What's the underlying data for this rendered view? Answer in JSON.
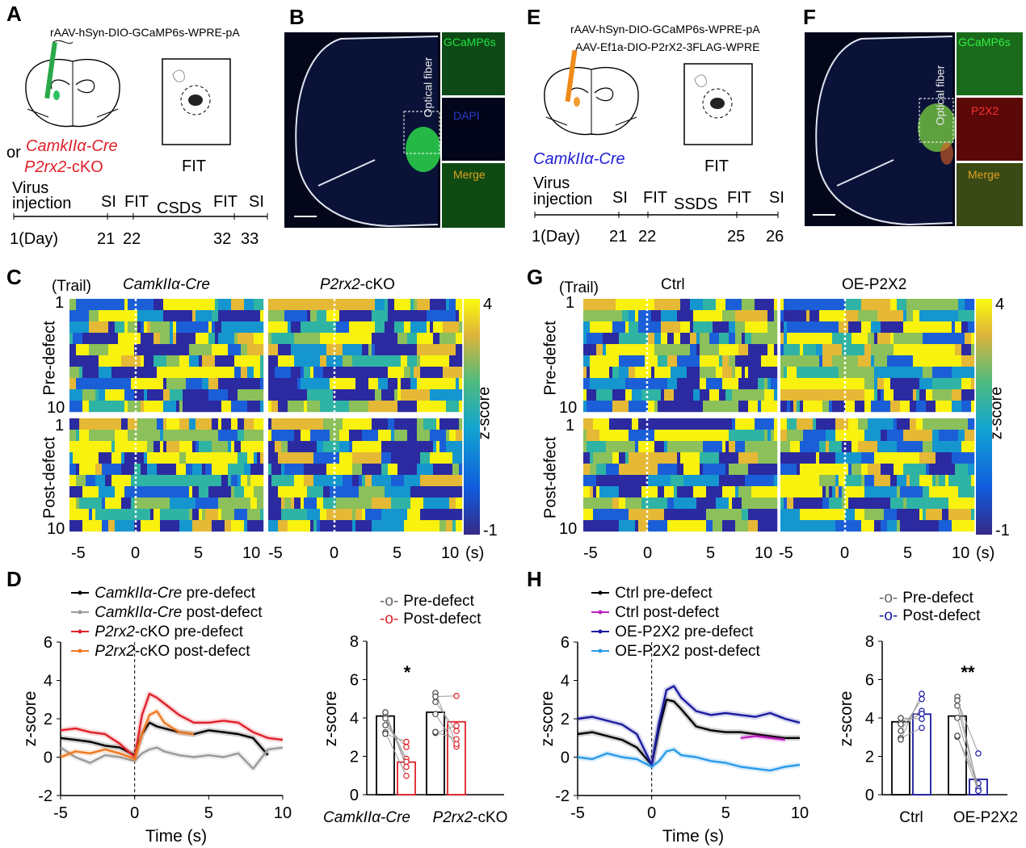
{
  "panels": {
    "A": "A",
    "B": "B",
    "C": "C",
    "D": "D",
    "E": "E",
    "F": "F",
    "G": "G",
    "H": "H"
  },
  "panelA": {
    "virus": "rAAV-hSyn-DIO-GCaMP6s-WPRE-pA",
    "or": "or",
    "line1": "CamkIIα-Cre",
    "line2a": "P2rx2",
    "line2b": "-cKO",
    "fit_label": "FIT",
    "timeline": {
      "virus": "Virus",
      "injection": "injection",
      "day": "1(Day)",
      "events": [
        "SI",
        "FIT",
        "CSDS",
        "FIT",
        "SI"
      ],
      "days": [
        "21",
        "22",
        "32",
        "33"
      ]
    }
  },
  "panelB": {
    "fiber": "Optical fiber",
    "insets": [
      "GCaMP6s",
      "DAPI",
      "Merge"
    ]
  },
  "panelE": {
    "virus1": "rAAV-hSyn-DIO-GCaMP6s-WPRE-pA",
    "virus2": "AAV-Ef1a-DIO-P2rX2-3FLAG-WPRE",
    "line": "CamkIIα-Cre",
    "fit_label": "FIT",
    "timeline": {
      "virus": "Virus",
      "injection": "injection",
      "day": "1(Day)",
      "events": [
        "SI",
        "FIT",
        "SSDS",
        "FIT",
        "SI"
      ],
      "days": [
        "21",
        "22",
        "25",
        "26"
      ]
    }
  },
  "panelF": {
    "fiber": "Optical fiber",
    "insets": [
      "GCaMP6s",
      "P2X2",
      "Merge"
    ]
  },
  "panelC": {
    "trail": "(Trail)",
    "col1": "CamkIIα-Cre",
    "col2a": "P2rx2",
    "col2b": "-cKO",
    "row1": "Pre-defect",
    "row2": "Post-defect",
    "tick_first": "1",
    "tick_last": "10",
    "xticks": [
      "-5",
      "0",
      "5",
      "10"
    ],
    "xunit": "(s)",
    "cbar_label": "z-score",
    "cbar_max": "4",
    "cbar_min": "-1"
  },
  "panelG": {
    "trail": "(Trail)",
    "col1": "Ctrl",
    "col2": "OE-P2X2",
    "row1": "Pre-defect",
    "row2": "Post-defect",
    "tick_first": "1",
    "tick_last": "10",
    "xticks": [
      "-5",
      "0",
      "5",
      "10"
    ],
    "xunit": "(s)",
    "cbar_label": "z-score",
    "cbar_max": "4",
    "cbar_min": "-1"
  },
  "panelD": {
    "legend": [
      {
        "a": "CamkIIα-Cre",
        "b": " pre-defect",
        "color": "#000000"
      },
      {
        "a": "CamkIIα-Cre",
        "b": " post-defect",
        "color": "#9a9a9a"
      },
      {
        "a": "P2rx2",
        "b": "-cKO pre-defect",
        "color": "#e0202a"
      },
      {
        "a": "P2rx2",
        "b": "-cKO post-defect",
        "color": "#f07820"
      }
    ],
    "ylabel": "z-score",
    "xlabel": "Time (s)",
    "yticks": [
      "6",
      "4",
      "2",
      "0",
      "-2"
    ],
    "xticks": [
      "-5",
      "0",
      "5",
      "10"
    ],
    "bar_legend": [
      "Pre-defect",
      "Post-defect"
    ],
    "bar_yticks": [
      "8",
      "6",
      "4",
      "2",
      "0"
    ],
    "bar_cat1": "CamkIIα-Cre",
    "bar_cat2a": "P2rx2",
    "bar_cat2b": "-cKO",
    "sig": "*"
  },
  "panelH": {
    "legend": [
      {
        "a": "Ctrl pre-defect",
        "color": "#000000"
      },
      {
        "a": "Ctrl post-defect",
        "color": "#c020c0"
      },
      {
        "a": "OE-P2X2 pre-defect",
        "color": "#1a1aa0"
      },
      {
        "a": "OE-P2X2 post-defect",
        "color": "#2a9ae8"
      }
    ],
    "ylabel": "z-score",
    "xlabel": "Time (s)",
    "yticks": [
      "6",
      "4",
      "2",
      "0",
      "-2"
    ],
    "xticks": [
      "-5",
      "0",
      "5",
      "10"
    ],
    "bar_legend": [
      "Pre-defect",
      "Post-defect"
    ],
    "bar_yticks": [
      "8",
      "6",
      "4",
      "2",
      "0"
    ],
    "bar_cat1": "Ctrl",
    "bar_cat2": "OE-P2X2",
    "sig": "**"
  },
  "chart_data": [
    {
      "type": "line",
      "title": "",
      "xlabel": "Time (s)",
      "ylabel": "z-score",
      "xlim": [
        -5,
        10
      ],
      "ylim": [
        -2,
        6
      ],
      "x": [
        -5,
        -4,
        -3,
        -2,
        -1,
        0,
        0.5,
        1,
        1.5,
        2,
        3,
        4,
        5,
        6,
        7,
        8,
        9,
        10
      ],
      "series": [
        {
          "name": "CamkIIα-Cre pre-defect",
          "values": [
            1.0,
            0.9,
            0.8,
            0.6,
            0.5,
            0.1,
            1.2,
            1.8,
            1.6,
            1.5,
            1.3,
            1.2,
            1.4,
            1.3,
            1.2,
            1.0,
            0.1,
            null
          ]
        },
        {
          "name": "CamkIIα-Cre post-defect",
          "values": [
            0.5,
            0.0,
            -0.3,
            0.1,
            0.0,
            -0.2,
            0.2,
            0.4,
            0.5,
            0.3,
            0.1,
            0.0,
            0.1,
            0.0,
            0.2,
            -0.6,
            0.4,
            0.5
          ]
        },
        {
          "name": "P2rx2-cKO pre-defect",
          "values": [
            1.4,
            1.5,
            1.3,
            1.2,
            0.7,
            0.0,
            2.2,
            3.3,
            3.1,
            2.8,
            2.2,
            1.8,
            1.8,
            1.9,
            1.8,
            1.3,
            1.0,
            0.9
          ]
        },
        {
          "name": "P2rx2-cKO post-defect",
          "values": [
            0.0,
            0.3,
            0.2,
            0.4,
            0.2,
            -0.1,
            1.2,
            2.2,
            2.4,
            1.8,
            1.3,
            1.2,
            null,
            null,
            null,
            null,
            null,
            null
          ]
        }
      ]
    },
    {
      "type": "bar",
      "title": "",
      "ylabel": "z-score",
      "ylim": [
        0,
        8
      ],
      "categories": [
        "CamkIIα-Cre",
        "P2rx2-cKO"
      ],
      "series": [
        {
          "name": "Pre-defect",
          "values": [
            4.1,
            4.3
          ]
        },
        {
          "name": "Post-defect",
          "values": [
            1.7,
            3.8
          ]
        }
      ]
    },
    {
      "type": "line",
      "title": "",
      "xlabel": "Time (s)",
      "ylabel": "z-score",
      "xlim": [
        -5,
        10
      ],
      "ylim": [
        -2,
        6
      ],
      "x": [
        -5,
        -4,
        -3,
        -2,
        -1,
        0,
        0.5,
        1,
        1.5,
        2,
        3,
        4,
        5,
        6,
        7,
        8,
        9,
        10
      ],
      "series": [
        {
          "name": "Ctrl pre-defect",
          "values": [
            1.2,
            1.3,
            1.1,
            0.9,
            0.5,
            -0.4,
            1.5,
            3.0,
            2.9,
            2.5,
            1.6,
            1.4,
            1.3,
            1.3,
            1.2,
            1.1,
            1.0,
            1.0
          ]
        },
        {
          "name": "Ctrl post-defect",
          "values": [
            null,
            null,
            null,
            null,
            null,
            null,
            null,
            null,
            null,
            null,
            null,
            null,
            null,
            1.0,
            1.1,
            1.0,
            0.9,
            null
          ]
        },
        {
          "name": "OE-P2X2 pre-defect",
          "values": [
            2.0,
            2.1,
            1.9,
            1.7,
            1.2,
            -0.4,
            1.8,
            3.5,
            3.7,
            3.1,
            2.4,
            2.2,
            2.3,
            2.2,
            2.1,
            2.3,
            2.0,
            1.8
          ]
        },
        {
          "name": "OE-P2X2 post-defect",
          "values": [
            0.0,
            -0.1,
            0.2,
            0.0,
            -0.1,
            -0.5,
            -0.2,
            0.3,
            0.4,
            0.1,
            0.0,
            -0.2,
            -0.3,
            -0.5,
            -0.6,
            -0.7,
            -0.5,
            -0.4
          ]
        }
      ]
    },
    {
      "type": "bar",
      "title": "",
      "ylabel": "z-score",
      "ylim": [
        0,
        8
      ],
      "categories": [
        "Ctrl",
        "OE-P2X2"
      ],
      "series": [
        {
          "name": "Pre-defect",
          "values": [
            3.8,
            4.1
          ]
        },
        {
          "name": "Post-defect",
          "values": [
            4.2,
            0.8
          ]
        }
      ]
    }
  ]
}
